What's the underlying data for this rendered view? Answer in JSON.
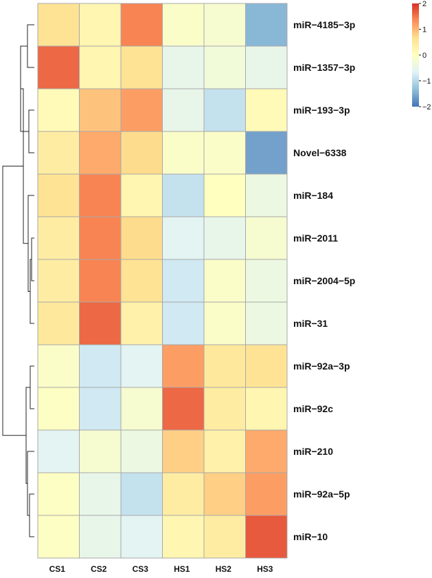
{
  "chart_data": {
    "type": "heatmap",
    "columns": [
      "CS1",
      "CS2",
      "CS3",
      "HS1",
      "HS2",
      "HS3"
    ],
    "rows": [
      "miR−4185−3p",
      "miR−1357−3p",
      "miR−193−3p",
      "Novel−6338",
      "miR−184",
      "miR−2011",
      "miR−2004−5p",
      "miR−31",
      "miR−92a−3p",
      "miR−92c",
      "miR−210",
      "miR−92a−5p",
      "miR−10"
    ],
    "values": [
      [
        0.6,
        0.2,
        1.4,
        -0.1,
        -0.2,
        -1.4
      ],
      [
        1.6,
        0.2,
        0.6,
        -0.5,
        -0.3,
        -0.5
      ],
      [
        0.1,
        0.9,
        1.2,
        -0.5,
        -0.9,
        0.1
      ],
      [
        0.4,
        1.1,
        0.7,
        -0.1,
        -0.1,
        -1.6
      ],
      [
        0.6,
        1.4,
        0.2,
        -0.9,
        0.0,
        -0.4
      ],
      [
        0.4,
        1.4,
        0.7,
        -0.6,
        -0.5,
        -0.2
      ],
      [
        0.4,
        1.4,
        0.6,
        -0.8,
        -0.1,
        -0.4
      ],
      [
        0.5,
        1.6,
        0.3,
        -0.8,
        -0.1,
        -0.4
      ],
      [
        -0.1,
        -0.8,
        -0.6,
        1.2,
        0.5,
        0.6
      ],
      [
        -0.05,
        -0.8,
        -0.2,
        1.6,
        0.4,
        0.2
      ],
      [
        -0.6,
        -0.2,
        -0.4,
        0.8,
        0.3,
        1.1
      ],
      [
        -0.05,
        -0.5,
        -0.9,
        0.4,
        0.8,
        1.2
      ],
      [
        -0.05,
        -0.5,
        -0.6,
        0.2,
        0.4,
        1.7
      ]
    ],
    "legend": {
      "ticks": [
        "2",
        "1",
        "0",
        "−1",
        "−2"
      ],
      "tick_values": [
        2,
        1,
        0,
        -1,
        -2
      ],
      "range": [
        -2,
        2
      ],
      "colors": [
        "#4575b4",
        "#91bfdb",
        "#e0f3f8",
        "#ffffbf",
        "#fee090",
        "#fc8d59",
        "#d73027"
      ],
      "placement": "top-right"
    },
    "row_dendrogram": true
  }
}
